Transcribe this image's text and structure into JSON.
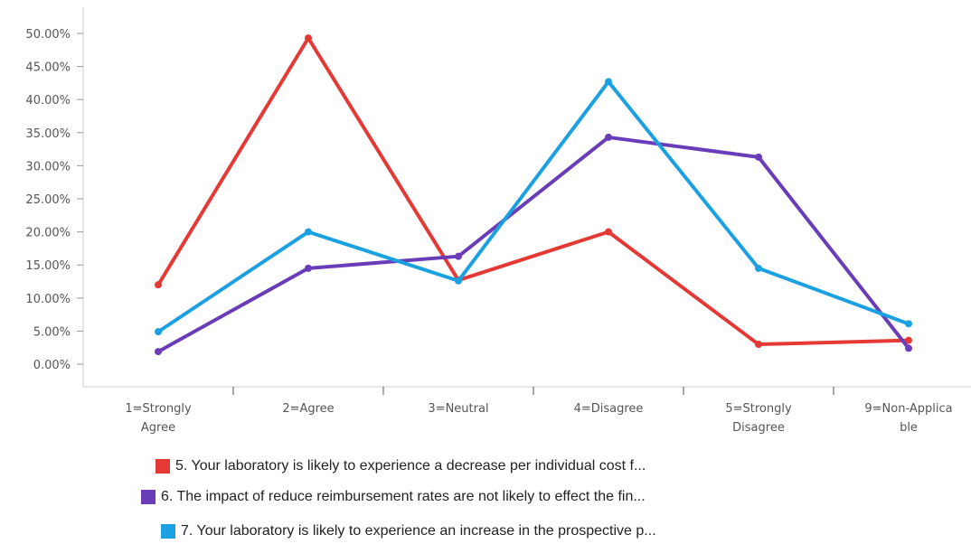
{
  "chart_data": {
    "type": "line",
    "title": "",
    "xlabel": "",
    "ylabel": "",
    "categories": [
      "1=Strongly Agree",
      "2=Agree",
      "3=Neutral",
      "4=Disagree",
      "5=Strongly Disagree",
      "9=Non-Applicable"
    ],
    "category_tick_lines": [
      [
        "1=Strongly",
        "Agree"
      ],
      [
        "2=Agree"
      ],
      [
        "3=Neutral"
      ],
      [
        "4=Disagree"
      ],
      [
        "5=Strongly",
        "Disagree"
      ],
      [
        "9=Non-Applica",
        "ble"
      ]
    ],
    "y_ticks": [
      "0.00%",
      "5.00%",
      "10.00%",
      "15.00%",
      "20.00%",
      "25.00%",
      "30.00%",
      "35.00%",
      "40.00%",
      "45.00%",
      "50.00%"
    ],
    "ylim": [
      0,
      50
    ],
    "grid": false,
    "legend_position": "bottom",
    "series": [
      {
        "name": "5. Your laboratory is likely to experience a decrease per individual cost f...",
        "color": "#e53935",
        "values": [
          12.0,
          49.3,
          12.7,
          20.0,
          3.0,
          3.6
        ]
      },
      {
        "name": "6. The impact of reduce reimbursement rates are not likely to effect the fin...",
        "color": "#6a3db8",
        "values": [
          1.9,
          14.5,
          16.3,
          34.3,
          31.3,
          2.4
        ]
      },
      {
        "name": "7. Your laboratory is likely to experience an increase in the prospective p...",
        "color": "#1ba1e2",
        "values": [
          4.9,
          20.0,
          12.6,
          42.7,
          14.5,
          6.1
        ]
      }
    ]
  }
}
